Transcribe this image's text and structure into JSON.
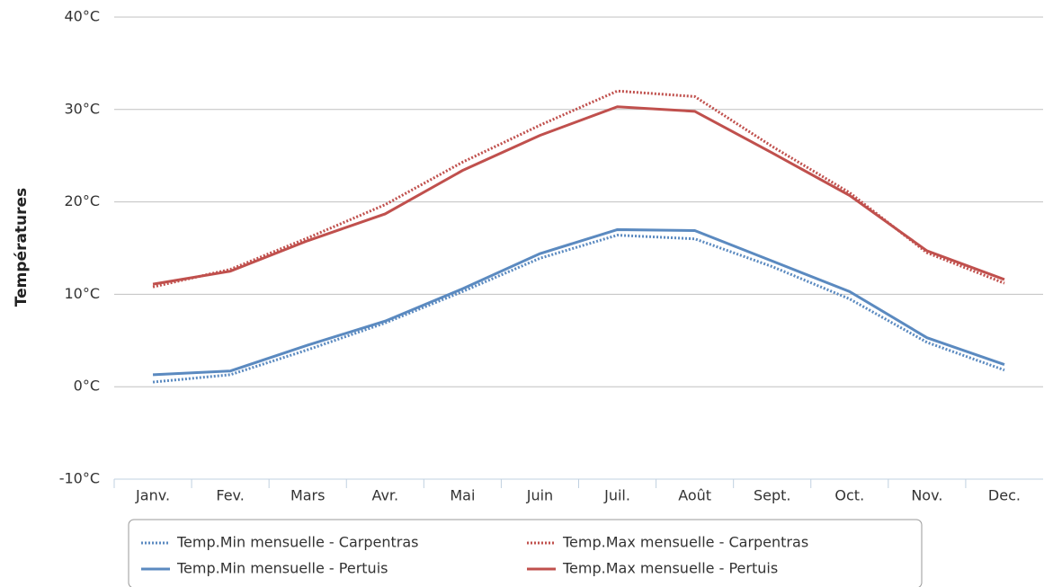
{
  "chart_data": {
    "type": "line",
    "y_label": "Températures",
    "categories": [
      "Janv.",
      "Fev.",
      "Mars",
      "Avr.",
      "Mai",
      "Juin",
      "Juil.",
      "Août",
      "Sept.",
      "Oct.",
      "Nov.",
      "Dec."
    ],
    "series": [
      {
        "name": "Temp.Min mensuelle - Carpentras",
        "color": "#5b8ac0",
        "style": "dotted",
        "values": [
          0.5,
          1.3,
          4.0,
          6.9,
          10.3,
          13.9,
          16.4,
          16.0,
          13.0,
          9.5,
          4.8,
          1.8
        ]
      },
      {
        "name": "Temp.Max mensuelle - Carpentras",
        "color": "#c0504d",
        "style": "dotted",
        "values": [
          10.8,
          12.7,
          16.1,
          19.7,
          24.3,
          28.3,
          32.0,
          31.4,
          26.0,
          21.0,
          14.5,
          11.2
        ]
      },
      {
        "name": "Temp.Min mensuelle - Pertuis",
        "color": "#5b8ac0",
        "style": "solid",
        "values": [
          1.3,
          1.7,
          4.5,
          7.1,
          10.6,
          14.4,
          17.0,
          16.9,
          13.6,
          10.3,
          5.3,
          2.4
        ]
      },
      {
        "name": "Temp.Max mensuelle - Pertuis",
        "color": "#c0504d",
        "style": "solid",
        "values": [
          11.1,
          12.5,
          15.8,
          18.7,
          23.4,
          27.2,
          30.3,
          29.8,
          25.3,
          20.7,
          14.7,
          11.6
        ]
      }
    ],
    "ylim": [
      -10,
      40
    ],
    "yticks": [
      {
        "value": -10,
        "label": "-10°C"
      },
      {
        "value": 0,
        "label": "0°C"
      },
      {
        "value": 10,
        "label": "10°C"
      },
      {
        "value": 20,
        "label": "20°C"
      },
      {
        "value": 30,
        "label": "30°C"
      },
      {
        "value": 40,
        "label": "40°C"
      }
    ],
    "grid": true
  }
}
